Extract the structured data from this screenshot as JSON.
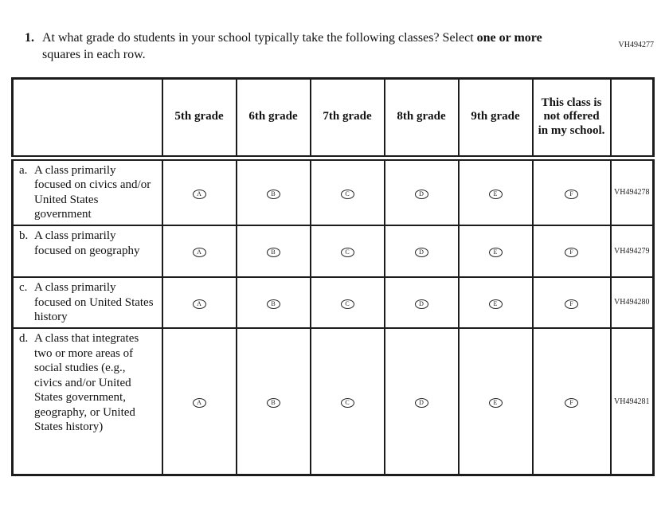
{
  "page": {
    "form_code": "VH494277"
  },
  "question": {
    "number": "1.",
    "text": "At what grade do students in your school typically take the following classes? Select",
    "bold_phrase": "one or more",
    "text_end": "squares in each row."
  },
  "table": {
    "header": [
      "",
      "5th grade",
      "6th grade",
      "7th grade",
      "8th grade",
      "9th grade",
      "This class is not offered in my school.",
      ""
    ],
    "options": [
      "A",
      "B",
      "C",
      "D",
      "E",
      "F"
    ],
    "rows": [
      {
        "letter": "a.",
        "label": "A class primarily focused on civics and/or United States government",
        "code": "VH494278"
      },
      {
        "letter": "b.",
        "label": "A class primarily focused on geography",
        "code": "VH494279"
      },
      {
        "letter": "c.",
        "label": "A class primarily focused on United States history",
        "code": "VH494280"
      },
      {
        "letter": "d.",
        "label": "A class that integrates two or more areas of social studies (e.g., civics and/or United States government, geography, or United States history)",
        "code": "VH494281"
      }
    ]
  }
}
